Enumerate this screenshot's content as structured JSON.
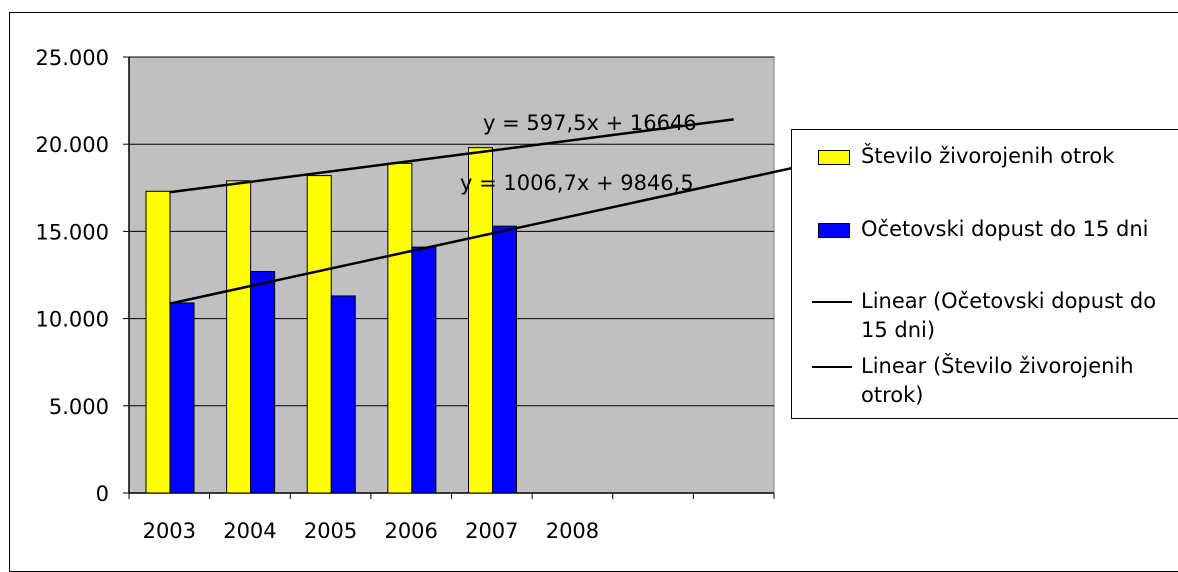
{
  "chart_data": {
    "type": "bar",
    "categories": [
      "2003",
      "2004",
      "2005",
      "2006",
      "2007",
      "2008"
    ],
    "series": [
      {
        "name": "Število živorojenih otrok",
        "color": "#ffff00",
        "values": [
          17300,
          17900,
          18200,
          18900,
          19800,
          null
        ]
      },
      {
        "name": "Očetovski dopust do 15 dni",
        "color": "#0000ff",
        "values": [
          10900,
          12700,
          11300,
          14100,
          15300,
          null
        ]
      }
    ],
    "trendlines": [
      {
        "name": "Linear (Očetovski dopust do 15 dni)",
        "equation": "y = 1006,7x + 9846,5",
        "slope": 1006.7,
        "intercept": 9846.5,
        "x_from": 1,
        "x_to": 9
      },
      {
        "name": "Linear (Število živorojenih otrok)",
        "equation": "y = 597,5x + 16646",
        "slope": 597.5,
        "intercept": 16646,
        "x_from": 1,
        "x_to": 8
      }
    ],
    "yticks": [
      "0",
      "5.000",
      "10.000",
      "15.000",
      "20.000",
      "25.000"
    ],
    "ylim": [
      0,
      25000
    ],
    "category_slots": 8,
    "plot_background": "#c0c0c0",
    "grid": true,
    "legend_position": "right"
  },
  "legend": {
    "items": [
      {
        "label": "Število živorojenih otrok"
      },
      {
        "label": "Očetovski dopust do 15 dni"
      },
      {
        "label": "Linear (Očetovski dopust do 15 dni)"
      },
      {
        "label": "Linear (Število živorojenih otrok)"
      }
    ]
  }
}
